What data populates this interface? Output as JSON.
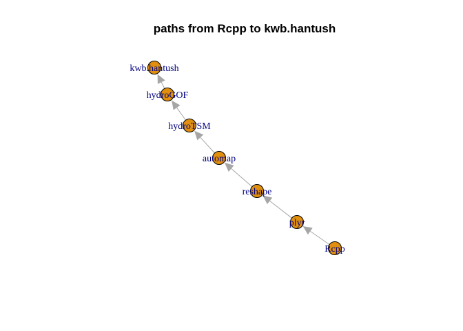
{
  "title": "paths from Rcpp to kwb.hantush",
  "graph": {
    "nodes": [
      {
        "id": "kwb.hantush",
        "label": "kwb.hantush"
      },
      {
        "id": "hydroGOF",
        "label": "hydroGOF"
      },
      {
        "id": "hydroTSM",
        "label": "hydroTSM"
      },
      {
        "id": "automap",
        "label": "automap"
      },
      {
        "id": "reshape",
        "label": "reshape"
      },
      {
        "id": "plyr",
        "label": "plyr"
      },
      {
        "id": "Rcpp",
        "label": "Rcpp"
      }
    ],
    "edges": [
      {
        "from": "Rcpp",
        "to": "plyr"
      },
      {
        "from": "plyr",
        "to": "reshape"
      },
      {
        "from": "reshape",
        "to": "automap"
      },
      {
        "from": "automap",
        "to": "hydroTSM"
      },
      {
        "from": "hydroTSM",
        "to": "hydroGOF"
      },
      {
        "from": "hydroGOF",
        "to": "kwb.hantush"
      }
    ],
    "colors": {
      "node_fill": "#e08f0f",
      "node_border": "#000000",
      "edge": "#a6a6a6",
      "label": "#000080"
    }
  }
}
